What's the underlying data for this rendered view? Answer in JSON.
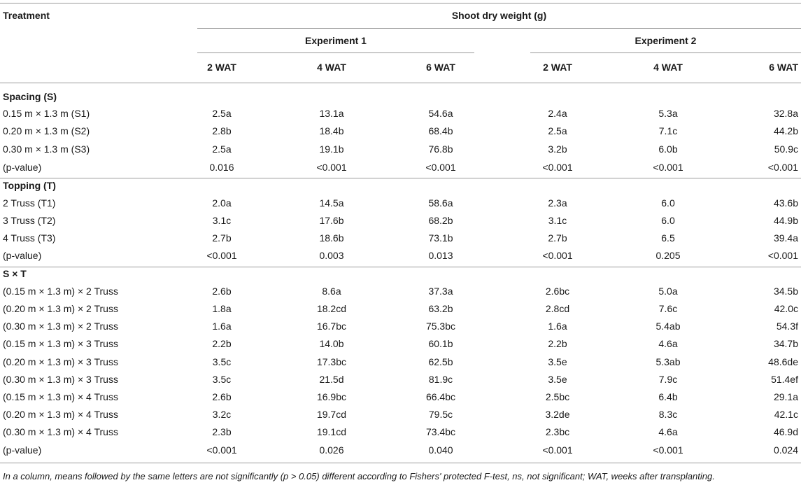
{
  "header": {
    "treatment": "Treatment",
    "shoot_dry_weight": "Shoot dry weight (g)",
    "experiment1": "Experiment 1",
    "experiment2": "Experiment 2",
    "wat": [
      "2 WAT",
      "4 WAT",
      "6 WAT",
      "2 WAT",
      "4 WAT",
      "6 WAT"
    ]
  },
  "rows": [
    {
      "label": "Spacing (S)",
      "section": true,
      "values": []
    },
    {
      "label": "0.15 m × 1.3 m (S1)",
      "values": [
        "2.5a",
        "13.1a",
        "54.6a",
        "2.4a",
        "5.3a",
        "32.8a"
      ]
    },
    {
      "label": "0.20 m × 1.3 m (S2)",
      "values": [
        "2.8b",
        "18.4b",
        "68.4b",
        "2.5a",
        "7.1c",
        "44.2b"
      ]
    },
    {
      "label": "0.30 m × 1.3 m (S3)",
      "values": [
        "2.5a",
        "19.1b",
        "76.8b",
        "3.2b",
        "6.0b",
        "50.9c"
      ]
    },
    {
      "label": "(p-value)",
      "values": [
        "0.016",
        "<0.001",
        "<0.001",
        "<0.001",
        "<0.001",
        "<0.001"
      ]
    },
    {
      "label": "Topping (T)",
      "section": true,
      "values": []
    },
    {
      "label": "2 Truss (T1)",
      "values": [
        "2.0a",
        "14.5a",
        "58.6a",
        "2.3a",
        "6.0",
        "43.6b"
      ]
    },
    {
      "label": "3 Truss (T2)",
      "values": [
        "3.1c",
        "17.6b",
        "68.2b",
        "3.1c",
        "6.0",
        "44.9b"
      ]
    },
    {
      "label": "4 Truss (T3)",
      "values": [
        "2.7b",
        "18.6b",
        "73.1b",
        "2.7b",
        "6.5",
        "39.4a"
      ]
    },
    {
      "label": "(p-value)",
      "values": [
        "<0.001",
        "0.003",
        "0.013",
        "<0.001",
        "0.205",
        "<0.001"
      ]
    },
    {
      "label": "S × T",
      "section": true,
      "values": []
    },
    {
      "label": "(0.15 m × 1.3 m) × 2 Truss",
      "values": [
        "2.6b",
        "8.6a",
        "37.3a",
        "2.6bc",
        "5.0a",
        "34.5b"
      ]
    },
    {
      "label": "(0.20 m × 1.3 m) × 2 Truss",
      "values": [
        "1.8a",
        "18.2cd",
        "63.2b",
        "2.8cd",
        "7.6c",
        "42.0c"
      ]
    },
    {
      "label": "(0.30 m × 1.3 m) × 2 Truss",
      "values": [
        "1.6a",
        "16.7bc",
        "75.3bc",
        "1.6a",
        "5.4ab",
        "54.3f"
      ]
    },
    {
      "label": "(0.15 m × 1.3 m) × 3 Truss",
      "values": [
        "2.2b",
        "14.0b",
        "60.1b",
        "2.2b",
        "4.6a",
        "34.7b"
      ]
    },
    {
      "label": "(0.20 m × 1.3 m) × 3 Truss",
      "values": [
        "3.5c",
        "17.3bc",
        "62.5b",
        "3.5e",
        "5.3ab",
        "48.6de"
      ]
    },
    {
      "label": "(0.30 m × 1.3 m) × 3 Truss",
      "values": [
        "3.5c",
        "21.5d",
        "81.9c",
        "3.5e",
        "7.9c",
        "51.4ef"
      ]
    },
    {
      "label": "(0.15 m × 1.3 m) × 4 Truss",
      "values": [
        "2.6b",
        "16.9bc",
        "66.4bc",
        "2.5bc",
        "6.4b",
        "29.1a"
      ]
    },
    {
      "label": "(0.20 m × 1.3 m) × 4 Truss",
      "values": [
        "3.2c",
        "19.7cd",
        "79.5c",
        "3.2de",
        "8.3c",
        "42.1c"
      ]
    },
    {
      "label": "(0.30 m × 1.3 m) × 4 Truss",
      "values": [
        "2.3b",
        "19.1cd",
        "73.4bc",
        "2.3bc",
        "4.6a",
        "46.9d"
      ]
    },
    {
      "label": "(p-value)",
      "values": [
        "<0.001",
        "0.026",
        "0.040",
        "<0.001",
        "<0.001",
        "0.024"
      ]
    }
  ],
  "footnote": "In a column, means followed by the same letters are not significantly (p > 0.05) different according to Fishers' protected F-test, ns, not significant; WAT, weeks after transplanting."
}
